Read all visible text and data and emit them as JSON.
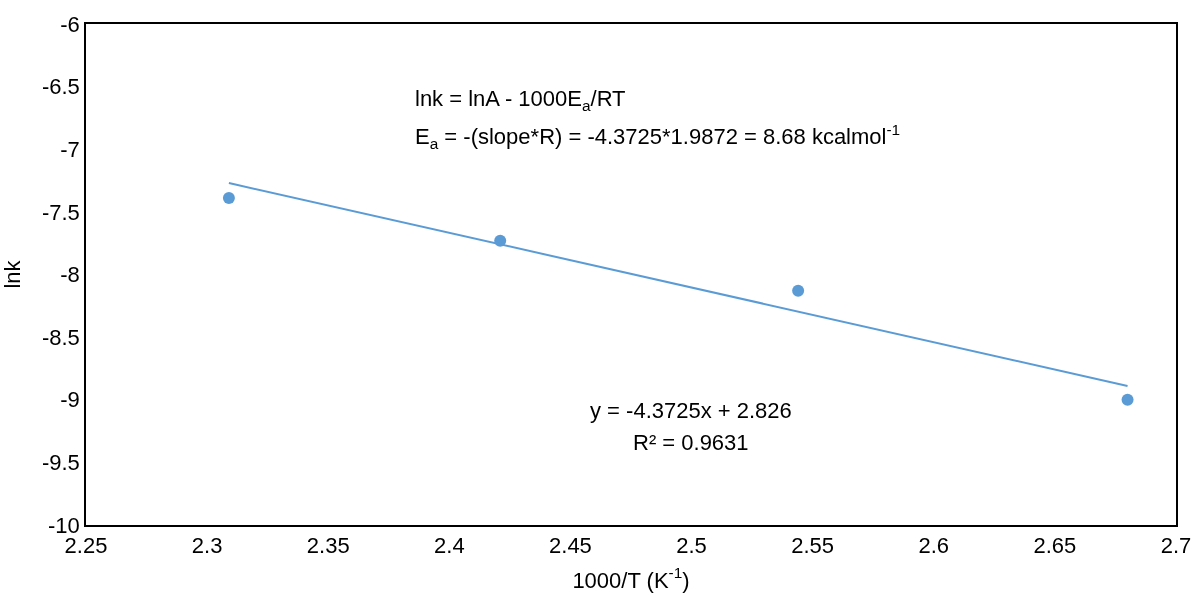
{
  "chart_data": {
    "type": "scatter",
    "xlabel": "1000/T (K$^{-1}$)",
    "ylabel": "lnk",
    "series": [
      {
        "color": "#5b9bd5",
        "x": [
          2.309,
          2.421,
          2.544,
          2.68
        ],
        "values": [
          -7.39,
          -7.73,
          -8.13,
          -9.0
        ],
        "marker": "circle"
      },
      {
        "type": "line",
        "color": "#5b9bd5",
        "x": [
          2.309,
          2.68
        ],
        "values": [
          -7.27,
          -8.89
        ],
        "marker": "none"
      }
    ],
    "xlim": [
      2.25,
      2.7
    ],
    "xticks": [
      2.25,
      2.3,
      2.35,
      2.4,
      2.45,
      2.5,
      2.55,
      2.6,
      2.65,
      2.7
    ],
    "ylim": [
      -10,
      -6
    ],
    "yticks": [
      -10,
      -9.5,
      -9,
      -8.5,
      -8,
      -7.5,
      -7,
      -6.5,
      -6
    ],
    "annotations": [
      "lnk = lnA - 1000E$_{a}$/RT",
      "E$_{a}$ = -(slope*R) = -4.3725*1.9872 = 8.68 kcalmol$^{-1}$",
      "y = -4.3725x + 2.826",
      "R² = 0.9631"
    ]
  }
}
